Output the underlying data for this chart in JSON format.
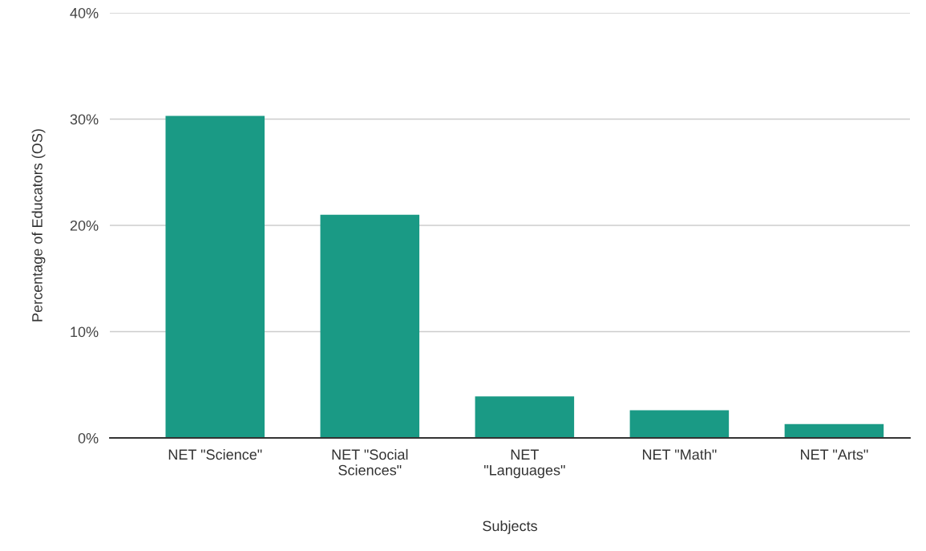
{
  "chart_data": {
    "type": "bar",
    "xlabel": "Subjects",
    "ylabel": "Percentage of Educators (OS)",
    "categories": [
      "NET \"Science\"",
      "NET \"Social Sciences\"",
      "NET \"Languages\"",
      "NET \"Math\"",
      "NET \"Arts\""
    ],
    "values": [
      30.3,
      21.0,
      3.9,
      2.6,
      1.3
    ],
    "color": "#1a9a85",
    "ylim": [
      0,
      40
    ],
    "yticks": [
      {
        "value": 0,
        "label": "0%"
      },
      {
        "value": 10,
        "label": "10%"
      },
      {
        "value": 20,
        "label": "20%"
      },
      {
        "value": 30,
        "label": "30%"
      },
      {
        "value": 40,
        "label": "40%"
      }
    ],
    "grid": "y",
    "legend": false
  }
}
